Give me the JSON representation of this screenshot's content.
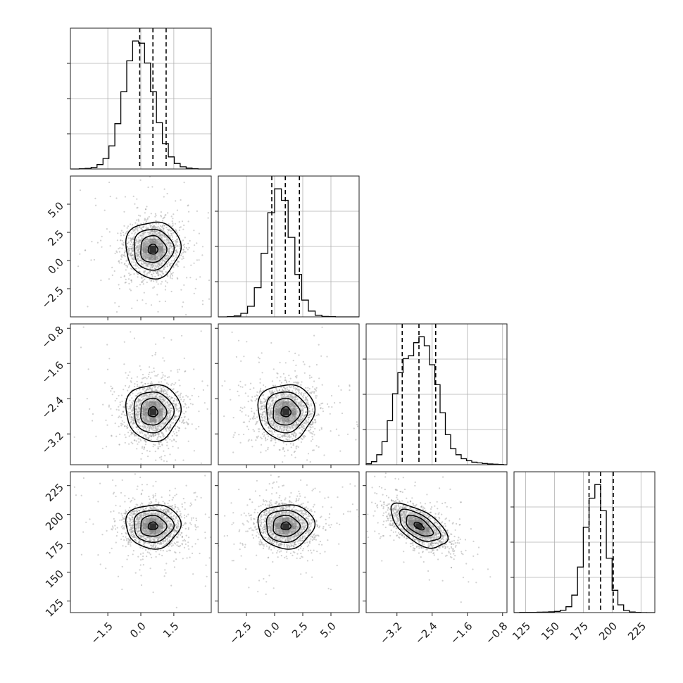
{
  "chart_data": {
    "type": "corner",
    "parameters": [
      {
        "range": [
          -3.2,
          3.2
        ],
        "ticks": [
          -1.5,
          0.0,
          1.5
        ],
        "tick_labels": [
          "−1.5",
          "0.0",
          "1.5"
        ],
        "mean": 0.55,
        "sd": 0.62,
        "quantiles": [
          -0.05,
          0.55,
          1.15
        ],
        "hist": {
          "bin_edges": [
            -2.8,
            -2.53,
            -2.26,
            -1.99,
            -1.72,
            -1.45,
            -1.18,
            -0.91,
            -0.64,
            -0.37,
            -0.1,
            0.17,
            0.44,
            0.71,
            0.98,
            1.25,
            1.52,
            1.79,
            2.06,
            2.33,
            2.6
          ],
          "counts": [
            2,
            5,
            14,
            40,
            95,
            210,
            410,
            700,
            980,
            1160,
            1140,
            960,
            700,
            420,
            230,
            110,
            50,
            20,
            8,
            3
          ]
        }
      },
      {
        "range": [
          -5.0,
          7.5
        ],
        "ticks": [
          -2.5,
          0.0,
          2.5,
          5.0
        ],
        "tick_labels": [
          "−2.5",
          "0.0",
          "2.5",
          "5.0"
        ],
        "mean": 1.0,
        "sd": 1.25,
        "quantiles": [
          -0.25,
          0.95,
          2.2
        ],
        "hist": {
          "bin_edges": [
            -4.2,
            -3.6,
            -3.0,
            -2.4,
            -1.8,
            -1.2,
            -0.6,
            0.0,
            0.6,
            1.2,
            1.8,
            2.4,
            3.0,
            3.6,
            4.2,
            4.8,
            5.4
          ],
          "counts": [
            3,
            10,
            40,
            120,
            330,
            720,
            1180,
            1450,
            1320,
            900,
            480,
            190,
            65,
            18,
            5,
            2
          ]
        }
      },
      {
        "range": [
          -3.9,
          -0.7
        ],
        "ticks": [
          -3.2,
          -2.4,
          -1.6,
          -0.8
        ],
        "tick_labels": [
          "−3.2",
          "−2.4",
          "−1.6",
          "−0.8"
        ],
        "mean": -2.7,
        "sd": 0.32,
        "quantiles": [
          -3.08,
          -2.7,
          -2.32
        ],
        "hist": {
          "bin_edges": [
            -3.9,
            -3.78,
            -3.66,
            -3.54,
            -3.42,
            -3.3,
            -3.18,
            -3.06,
            -2.94,
            -2.82,
            -2.7,
            -2.58,
            -2.46,
            -2.34,
            -2.22,
            -2.1,
            -1.98,
            -1.86,
            -1.74,
            -1.62,
            -1.5,
            -1.38,
            -1.26,
            -1.14,
            -1.02,
            -0.9,
            -0.78
          ],
          "counts": [
            10,
            30,
            100,
            230,
            440,
            710,
            920,
            1060,
            1090,
            1220,
            1280,
            1190,
            1000,
            800,
            520,
            300,
            160,
            100,
            60,
            40,
            25,
            18,
            12,
            8,
            5,
            3
          ]
        }
      },
      {
        "range": [
          115,
          237
        ],
        "ticks": [
          125,
          150,
          175,
          200,
          225
        ],
        "tick_labels": [
          "125",
          "150",
          "175",
          "200",
          "225"
        ],
        "mean": 190,
        "sd": 9.5,
        "quantiles": [
          180,
          190,
          201
        ],
        "hist": {
          "bin_edges": [
            120,
            125,
            130,
            135,
            140,
            145,
            150,
            155,
            160,
            165,
            170,
            175,
            180,
            185,
            190,
            195,
            200,
            205,
            210,
            215,
            220,
            225,
            230
          ],
          "counts": [
            2,
            3,
            3,
            4,
            5,
            8,
            12,
            25,
            60,
            180,
            470,
            880,
            1180,
            1320,
            1050,
            560,
            230,
            80,
            22,
            6,
            2,
            1
          ]
        }
      }
    ],
    "pairs": [
      {
        "x": 0,
        "y": 1,
        "corr": 0.0
      },
      {
        "x": 0,
        "y": 2,
        "corr": 0.0
      },
      {
        "x": 1,
        "y": 2,
        "corr": 0.0
      },
      {
        "x": 0,
        "y": 3,
        "corr": 0.0
      },
      {
        "x": 1,
        "y": 3,
        "corr": 0.0
      },
      {
        "x": 2,
        "y": 3,
        "corr": -0.6
      }
    ],
    "grid": true,
    "colors": {
      "line": "#000000",
      "points": "#9a9a9a",
      "grid": "#b0b0b0",
      "frame": "#222222"
    }
  }
}
